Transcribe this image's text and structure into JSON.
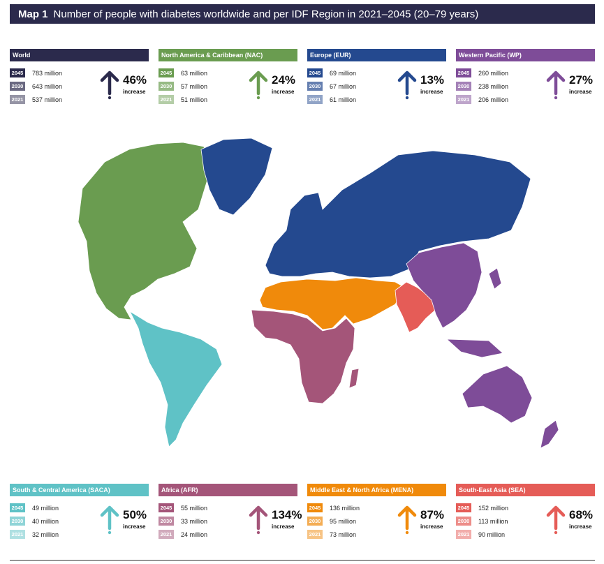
{
  "title": {
    "map_number": "Map 1",
    "text": "Number of people with diabetes worldwide and per IDF Region in 2021–2045 (20–79 years)"
  },
  "increase_word": "increase",
  "colors": {
    "title_bg": "#2b2a4c",
    "World": "#2b2a4c",
    "NAC": "#6a9c50",
    "EUR": "#24498f",
    "WP": "#7e4c98",
    "SACA": "#5fc2c6",
    "AFR": "#a45579",
    "MENA": "#f08a0b",
    "SEA": "#e55c57"
  },
  "chart_data": {
    "type": "map",
    "unit": "million",
    "years": [
      "2045",
      "2030",
      "2021"
    ],
    "regions": [
      {
        "key": "World",
        "name": "World",
        "values": [
          "783 million",
          "643 million",
          "537 million"
        ],
        "increase": "46%"
      },
      {
        "key": "NAC",
        "name": "North America & Caribbean (NAC)",
        "values": [
          "63 million",
          "57 million",
          "51 million"
        ],
        "increase": "24%"
      },
      {
        "key": "EUR",
        "name": "Europe (EUR)",
        "values": [
          "69 million",
          "67 million",
          "61 million"
        ],
        "increase": "13%"
      },
      {
        "key": "WP",
        "name": "Western Pacific (WP)",
        "values": [
          "260 million",
          "238 million",
          "206 million"
        ],
        "increase": "27%"
      },
      {
        "key": "SACA",
        "name": "South & Central America (SACA)",
        "values": [
          "49 million",
          "40 million",
          "32 million"
        ],
        "increase": "50%"
      },
      {
        "key": "AFR",
        "name": "Africa (AFR)",
        "values": [
          "55 million",
          "33 million",
          "24 million"
        ],
        "increase": "134%"
      },
      {
        "key": "MENA",
        "name": "Middle East & North Africa (MENA)",
        "values": [
          "136 million",
          "95 million",
          "73 million"
        ],
        "increase": "87%"
      },
      {
        "key": "SEA",
        "name": "South-East Asia (SEA)",
        "values": [
          "152 million",
          "113 million",
          "90 million"
        ],
        "increase": "68%"
      }
    ]
  }
}
